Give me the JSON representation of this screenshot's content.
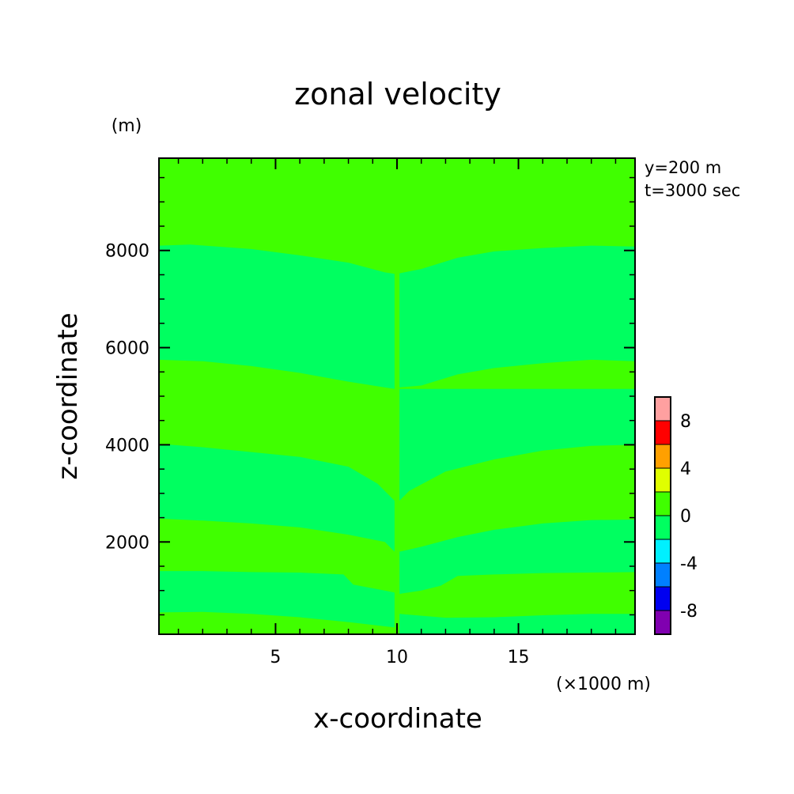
{
  "chart_data": {
    "type": "heatmap",
    "title": "zonal velocity",
    "xlabel": "x-coordinate",
    "ylabel": "z-coordinate",
    "x_unit": "(×1000 m)",
    "y_unit": "(m)",
    "annotations": [
      "y=200 m",
      "t=3000 sec"
    ],
    "xlim": [
      0.2,
      19.8
    ],
    "ylim": [
      100,
      9900
    ],
    "x_ticks": [
      5,
      10,
      15
    ],
    "y_ticks": [
      2000,
      4000,
      6000,
      8000
    ],
    "colorbar": {
      "levels": [
        -10,
        -8,
        -6,
        -4,
        -2,
        0,
        2,
        4,
        6,
        8,
        10
      ],
      "colors": [
        "#8000b0",
        "#0000f0",
        "#0080ff",
        "#00f0ff",
        "#00ff60",
        "#40ff00",
        "#e0ff00",
        "#ffa000",
        "#ff0000",
        "#ffa0a0"
      ],
      "tick_labels": [
        "-8",
        "-4",
        "0",
        "4",
        "8"
      ],
      "tick_values": [
        -8,
        -4,
        0,
        4,
        8
      ]
    },
    "fields": {
      "background": {
        "value_range": [
          0,
          2
        ],
        "color": "#40ff00"
      },
      "bands": [
        {
          "value_range": [
            -2,
            0
          ],
          "color": "#00ff60",
          "top": [
            [
              0.2,
              8100
            ],
            [
              1.5,
              8120
            ],
            [
              4,
              8030
            ],
            [
              6,
              7900
            ],
            [
              8,
              7750
            ],
            [
              9.5,
              7550
            ],
            [
              9.9,
              7520
            ]
          ],
          "bottom": [
            [
              0.2,
              5750
            ],
            [
              2,
              5720
            ],
            [
              4,
              5620
            ],
            [
              6,
              5480
            ],
            [
              8,
              5300
            ],
            [
              9.5,
              5180
            ],
            [
              9.9,
              5150
            ]
          ]
        },
        {
          "value_range": [
            -2,
            0
          ],
          "color": "#00ff60",
          "top": [
            [
              10.1,
              7530
            ],
            [
              11,
              7620
            ],
            [
              12.5,
              7850
            ],
            [
              14,
              7980
            ],
            [
              16,
              8050
            ],
            [
              18,
              8100
            ],
            [
              19.8,
              8080
            ]
          ],
          "bottom": [
            [
              10.1,
              5180
            ],
            [
              11,
              5220
            ],
            [
              12.5,
              5450
            ],
            [
              14,
              5580
            ],
            [
              16,
              5680
            ],
            [
              18,
              5750
            ],
            [
              19.8,
              5720
            ]
          ]
        },
        {
          "value_range": [
            -2,
            0
          ],
          "color": "#00ff60",
          "top": [
            [
              0.2,
              4020
            ],
            [
              2,
              3950
            ],
            [
              4,
              3850
            ],
            [
              6,
              3750
            ],
            [
              8,
              3550
            ],
            [
              9.2,
              3200
            ],
            [
              9.9,
              2850
            ]
          ],
          "bottom": [
            [
              0.2,
              2480
            ],
            [
              2,
              2440
            ],
            [
              4,
              2380
            ],
            [
              6,
              2300
            ],
            [
              8,
              2150
            ],
            [
              9.5,
              2000
            ],
            [
              9.9,
              1800
            ]
          ]
        },
        {
          "value_range": [
            -2,
            0
          ],
          "color": "#00ff60",
          "top": [
            [
              10.1,
              5150
            ],
            [
              19.8,
              5150
            ]
          ],
          "bottom": [
            [
              10.1,
              2850
            ],
            [
              10.5,
              3050
            ],
            [
              12,
              3450
            ],
            [
              14,
              3700
            ],
            [
              16,
              3880
            ],
            [
              18,
              3980
            ],
            [
              19.8,
              4000
            ]
          ]
        },
        {
          "value_range": [
            -2,
            0
          ],
          "color": "#00ff60",
          "top": [
            [
              10.1,
              1800
            ],
            [
              11,
              1900
            ],
            [
              12.5,
              2100
            ],
            [
              14,
              2250
            ],
            [
              16,
              2380
            ],
            [
              18,
              2450
            ],
            [
              19.8,
              2460
            ]
          ],
          "bottom": [
            [
              10.1,
              930
            ],
            [
              11,
              1000
            ],
            [
              11.8,
              1100
            ],
            [
              12.5,
              1300
            ],
            [
              14,
              1330
            ],
            [
              16,
              1360
            ],
            [
              19.8,
              1380
            ]
          ]
        },
        {
          "value_range": [
            -2,
            0
          ],
          "color": "#00ff60",
          "top": [
            [
              0.2,
              1400
            ],
            [
              2,
              1400
            ],
            [
              4,
              1380
            ],
            [
              6,
              1370
            ],
            [
              7.8,
              1330
            ],
            [
              8.2,
              1120
            ],
            [
              9.5,
              1000
            ],
            [
              9.9,
              960
            ]
          ],
          "bottom": [
            [
              0.2,
              550
            ],
            [
              2,
              560
            ],
            [
              4,
              520
            ],
            [
              6,
              450
            ],
            [
              8,
              350
            ],
            [
              9.9,
              240
            ]
          ]
        },
        {
          "value_range": [
            -2,
            0
          ],
          "color": "#00ff60",
          "top": [
            [
              10.1,
              520
            ],
            [
              12,
              440
            ],
            [
              14,
              450
            ],
            [
              16,
              490
            ],
            [
              18,
              520
            ],
            [
              19.8,
              520
            ]
          ],
          "bottom": [
            [
              10.1,
              100
            ],
            [
              19.8,
              100
            ]
          ]
        }
      ]
    }
  }
}
